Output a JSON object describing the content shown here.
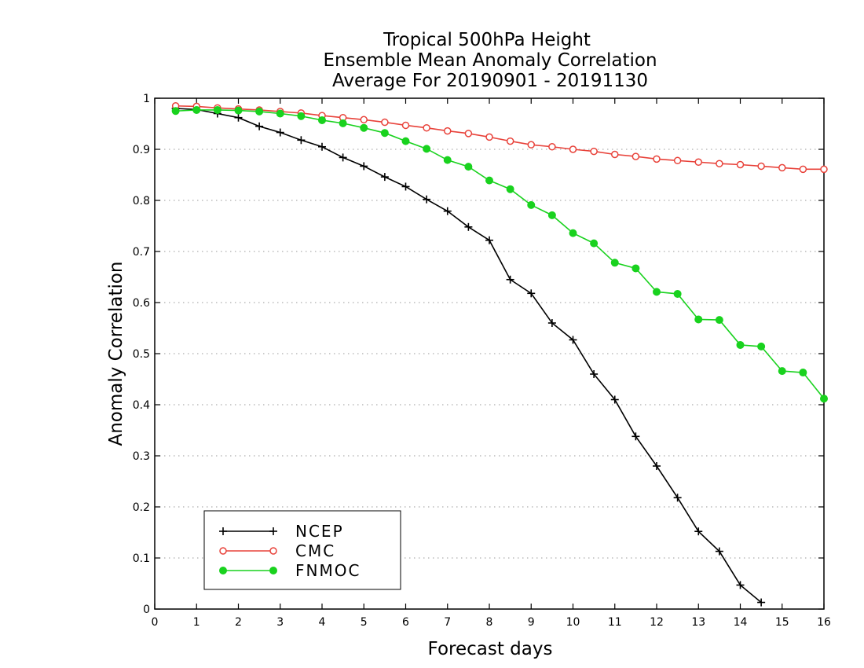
{
  "chart_data": {
    "type": "line",
    "title": [
      "Tropical 500hPa Height",
      "Ensemble Mean Anomaly Correlation",
      "Average For 20190901 - 20191130"
    ],
    "xlabel": "Forecast days",
    "ylabel": "Anomaly Correlation",
    "xlim": [
      0,
      16
    ],
    "ylim": [
      0,
      1
    ],
    "xticks": [
      "0",
      "1",
      "2",
      "3",
      "4",
      "5",
      "6",
      "7",
      "8",
      "9",
      "10",
      "11",
      "12",
      "13",
      "14",
      "15",
      "16"
    ],
    "yticks": [
      "0",
      "0.1",
      "0.2",
      "0.3",
      "0.4",
      "0.5",
      "0.6",
      "0.7",
      "0.8",
      "0.9",
      "1"
    ],
    "grid": "horizontal-dotted",
    "legend_position": "bottom-left",
    "x": [
      0.5,
      1,
      1.5,
      2,
      2.5,
      3,
      3.5,
      4,
      4.5,
      5,
      5.5,
      6,
      6.5,
      7,
      7.5,
      8,
      8.5,
      9,
      9.5,
      10,
      10.5,
      11,
      11.5,
      12,
      12.5,
      13,
      13.5,
      14,
      14.5,
      15,
      15.5,
      16
    ],
    "series": [
      {
        "name": "NCEP",
        "color": "#000000",
        "marker": "plus",
        "values": [
          0.98,
          0.978,
          0.97,
          0.962,
          0.945,
          0.933,
          0.918,
          0.905,
          0.884,
          0.867,
          0.846,
          0.827,
          0.802,
          0.779,
          0.748,
          0.722,
          0.645,
          0.618,
          0.56,
          0.527,
          0.46,
          0.41,
          0.338,
          0.28,
          0.218,
          0.152,
          0.113,
          0.047,
          0.013,
          null,
          null,
          null
        ]
      },
      {
        "name": "CMC",
        "color": "#e8423a",
        "marker": "open-circle",
        "values": [
          0.985,
          0.984,
          0.981,
          0.979,
          0.977,
          0.974,
          0.971,
          0.966,
          0.962,
          0.958,
          0.953,
          0.947,
          0.942,
          0.936,
          0.931,
          0.924,
          0.916,
          0.909,
          0.905,
          0.9,
          0.896,
          0.89,
          0.886,
          0.881,
          0.878,
          0.875,
          0.872,
          0.87,
          0.867,
          0.864,
          0.861,
          0.861
        ]
      },
      {
        "name": "FNMOC",
        "color": "#19d21e",
        "marker": "filled-circle",
        "values": [
          0.975,
          0.977,
          0.977,
          0.976,
          0.974,
          0.97,
          0.965,
          0.957,
          0.951,
          0.942,
          0.932,
          0.916,
          0.901,
          0.879,
          0.866,
          0.839,
          0.822,
          0.791,
          0.771,
          0.736,
          0.716,
          0.678,
          0.667,
          0.621,
          0.617,
          0.567,
          0.566,
          0.517,
          0.514,
          0.466,
          0.463,
          0.412
        ]
      }
    ]
  }
}
